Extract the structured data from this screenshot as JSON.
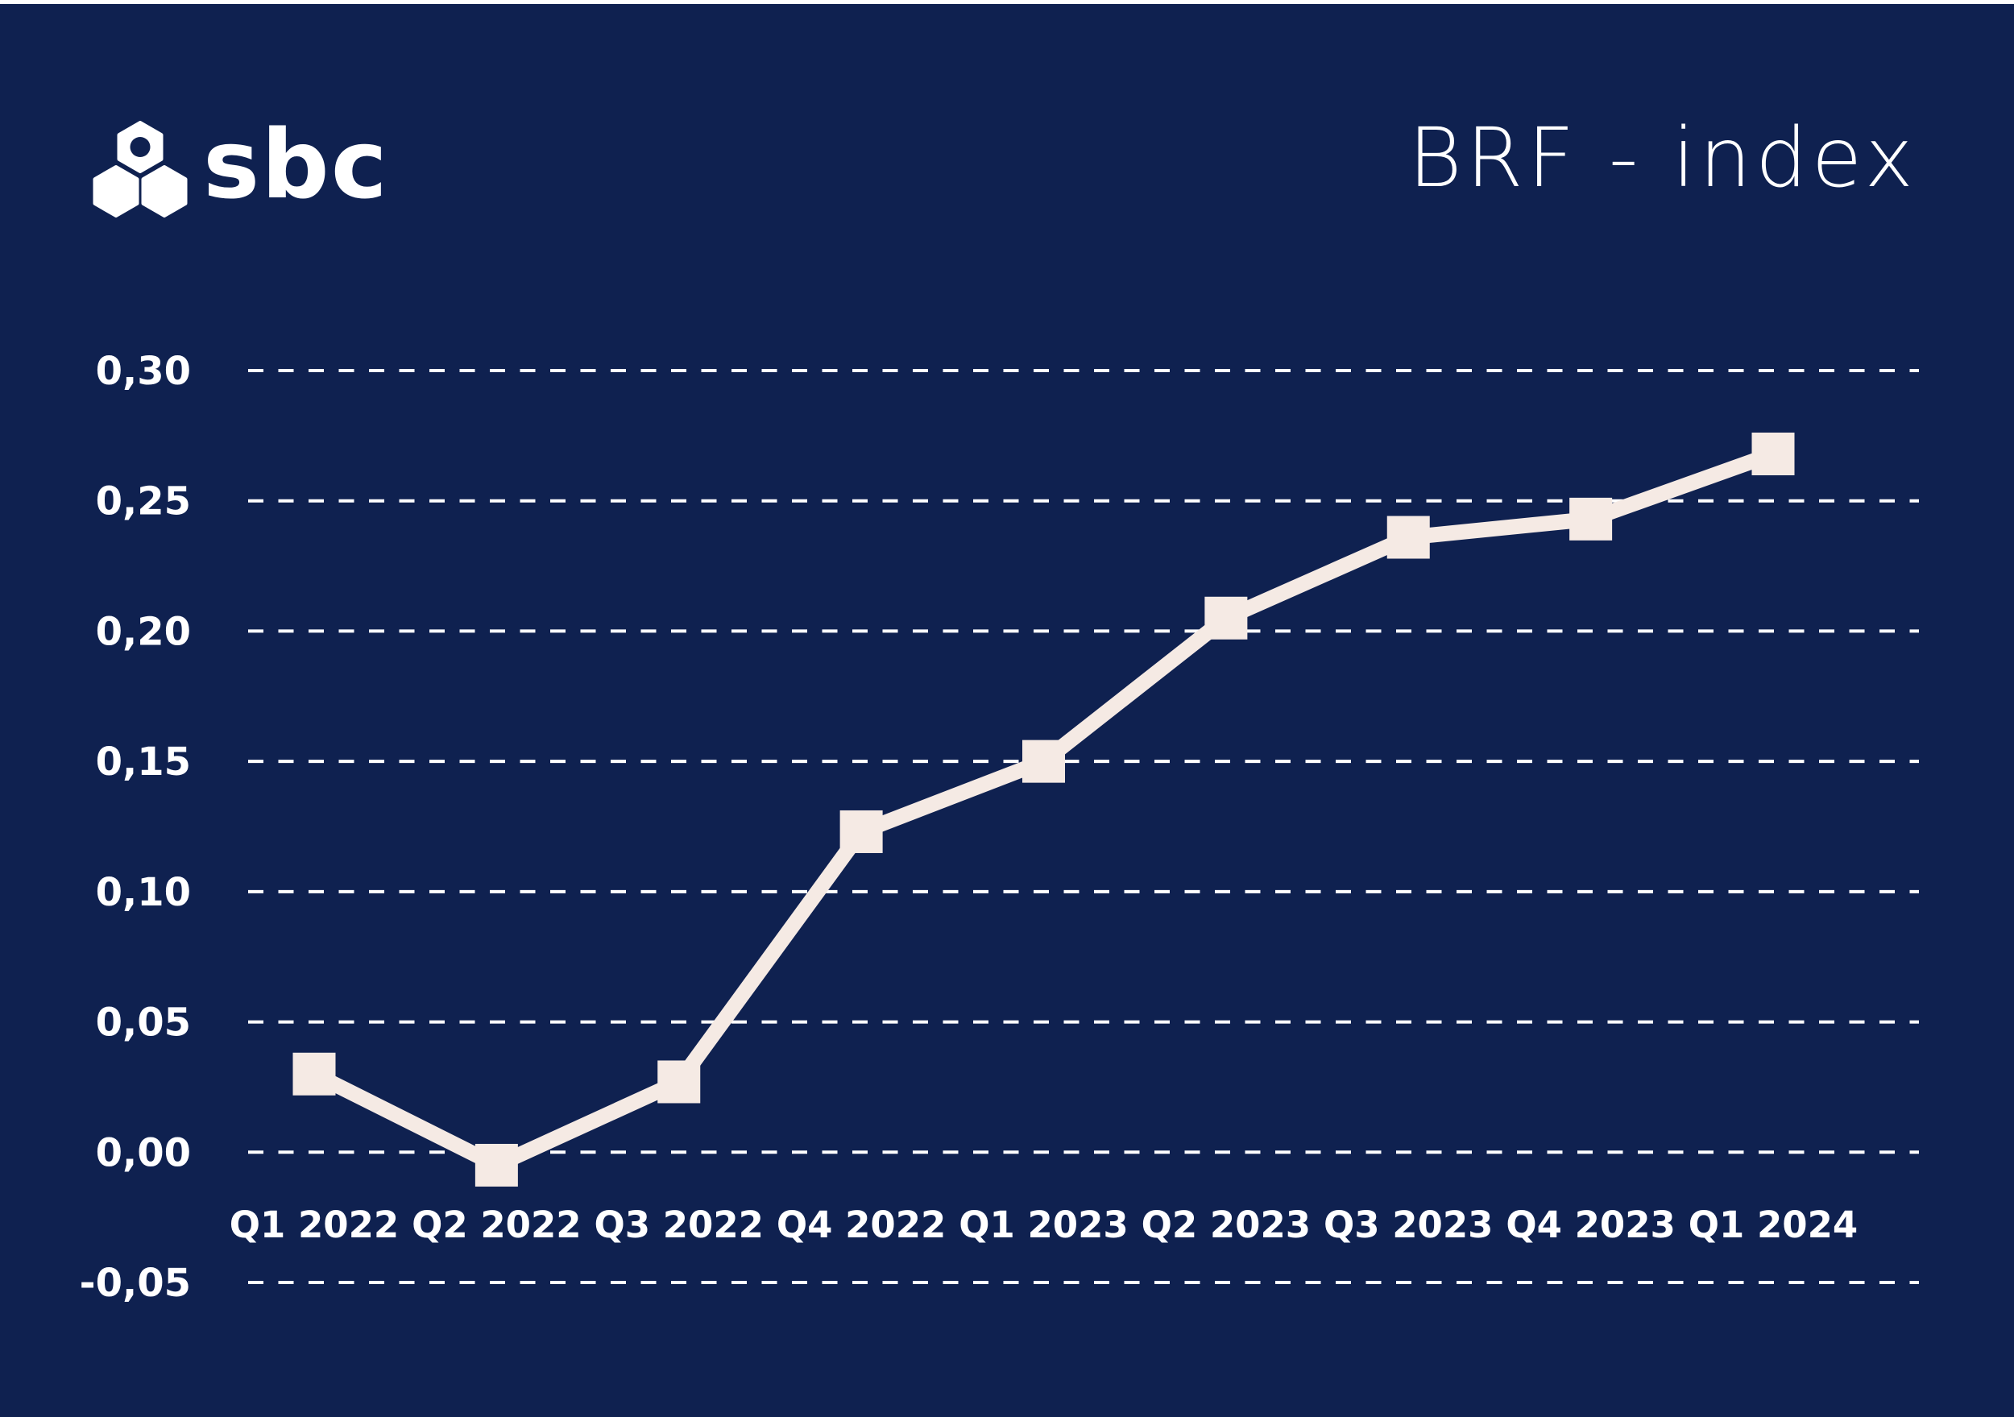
{
  "page": {
    "background_color": "#0f2150",
    "top_strip_color": "#ffffff"
  },
  "header": {
    "logo_text": "sbc",
    "logo_icon": "sbc-hexagons-icon",
    "title": "BRF - index"
  },
  "chart_data": {
    "type": "line",
    "title": "BRF - index",
    "categories": [
      "Q1 2022",
      "Q2 2022",
      "Q3 2022",
      "Q4 2022",
      "Q1 2023",
      "Q2 2023",
      "Q3 2023",
      "Q4 2023",
      "Q1 2024"
    ],
    "series": [
      {
        "name": "BRF-index",
        "values": [
          0.03,
          -0.005,
          0.027,
          0.123,
          0.15,
          0.205,
          0.236,
          0.243,
          0.268
        ]
      }
    ],
    "y_ticks": [
      {
        "label": "0,30",
        "value": 0.3
      },
      {
        "label": "0,25",
        "value": 0.25
      },
      {
        "label": "0,20",
        "value": 0.2
      },
      {
        "label": "0,15",
        "value": 0.15
      },
      {
        "label": "0,10",
        "value": 0.1
      },
      {
        "label": "0,05",
        "value": 0.05
      },
      {
        "label": "0,00",
        "value": 0.0
      },
      {
        "label": "-0,05",
        "value": -0.05
      }
    ],
    "ylim": [
      -0.05,
      0.3
    ],
    "xlabel": "",
    "ylabel": "",
    "grid": "horizontal-dashed",
    "legend": "none",
    "marker_shape": "square",
    "line_color": "#f5eae4",
    "marker_color": "#f5eae4",
    "grid_color": "#ffffff",
    "label_color": "#ffffff"
  }
}
